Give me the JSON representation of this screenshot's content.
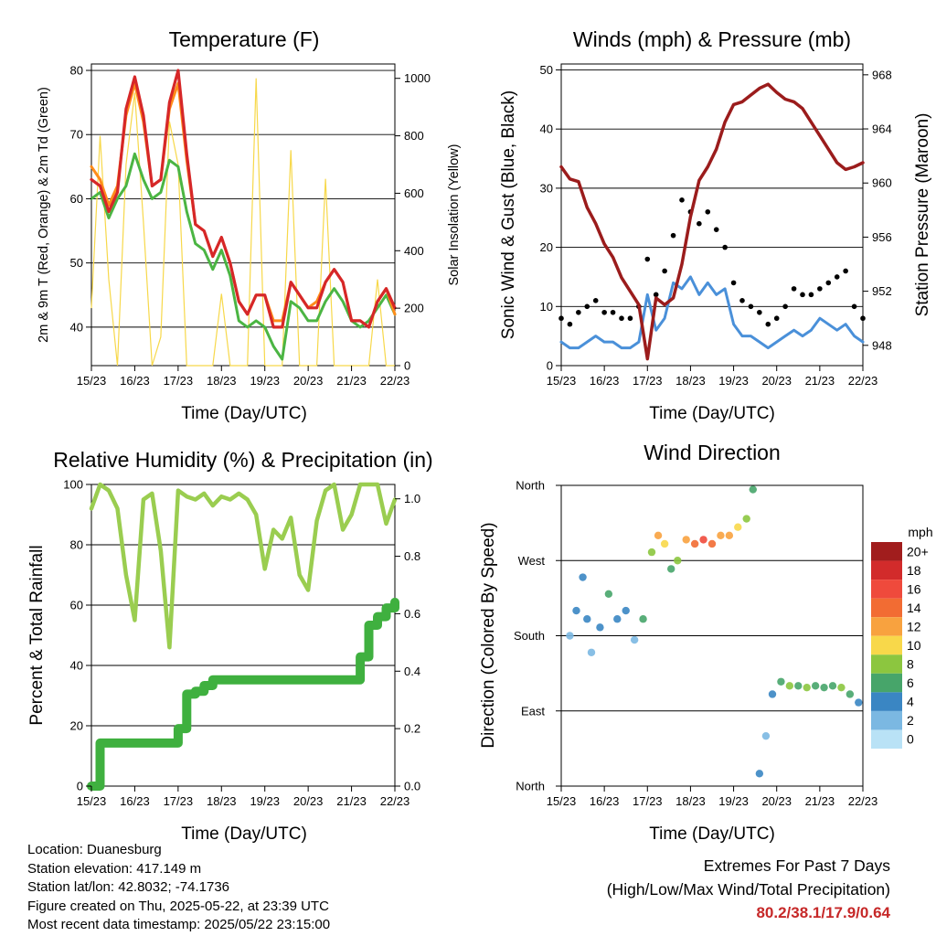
{
  "x_ticks": [
    "15/23",
    "16/23",
    "17/23",
    "18/23",
    "19/23",
    "20/23",
    "21/23",
    "22/23"
  ],
  "info": {
    "location": "Location: Duanesburg",
    "elevation": "Station elevation: 417.149 m",
    "latlon": "Station lat/lon: 42.8032; -74.1736",
    "created": "Figure created on Thu, 2025-05-22, at 23:39 UTC",
    "recent": "Most recent data timestamp: 2025/05/22 23:15:00"
  },
  "extremes": {
    "title": "Extremes For Past 7 Days",
    "subtitle": "(High/Low/Max Wind/Total Precipitation)",
    "values": "80.2/38.1/17.9/0.64"
  },
  "colors": {
    "temp_2m": "#d62728",
    "temp_9m": "#ff8c1a",
    "dewpoint": "#4bb543",
    "solar": "#f7d84a",
    "wind": "#4a90d9",
    "gust": "#000000",
    "pressure": "#9b1c1c",
    "rh": "#9acd50",
    "precip": "#3fb03f"
  },
  "chart_data": [
    {
      "type": "line",
      "title": "Temperature (F)",
      "xlabel": "Time (Day/UTC)",
      "ylabel": "2m & 9m T (Red, Orange) & 2m Td (Green)",
      "y2label": "Solar Insolation (Yellow)",
      "ylim": [
        34,
        81
      ],
      "y2lim": [
        0,
        1050
      ],
      "yticks": [
        40,
        50,
        60,
        70,
        80
      ],
      "y2ticks": [
        0,
        200,
        400,
        600,
        800,
        1000
      ],
      "x": [
        0,
        0.2,
        0.4,
        0.6,
        0.8,
        1.0,
        1.2,
        1.4,
        1.6,
        1.8,
        2.0,
        2.2,
        2.4,
        2.6,
        2.8,
        3.0,
        3.2,
        3.4,
        3.6,
        3.8,
        4.0,
        4.2,
        4.4,
        4.6,
        4.8,
        5.0,
        5.2,
        5.4,
        5.6,
        5.8,
        6.0,
        6.2,
        6.4,
        6.6,
        6.8,
        7.0
      ],
      "series": [
        {
          "name": "2m T",
          "values": [
            63,
            62,
            58,
            61,
            74,
            79,
            73,
            62,
            63,
            75,
            80,
            67,
            56,
            55,
            51,
            54,
            50,
            44,
            42,
            45,
            45,
            40,
            40,
            47,
            45,
            43,
            43,
            47,
            49,
            47,
            41,
            41,
            40,
            44,
            46,
            43
          ]
        },
        {
          "name": "9m T",
          "values": [
            65,
            63,
            59,
            62,
            73,
            78,
            72,
            62,
            63,
            74,
            78,
            66,
            56,
            55,
            51,
            54,
            50,
            44,
            42,
            45,
            45,
            41,
            41,
            47,
            45,
            43,
            44,
            47,
            49,
            47,
            41,
            41,
            40,
            44,
            46,
            42
          ]
        },
        {
          "name": "2m Td",
          "values": [
            60,
            61,
            57,
            60,
            62,
            67,
            63,
            60,
            61,
            66,
            65,
            58,
            53,
            52,
            49,
            52,
            48,
            41,
            40,
            41,
            40,
            37,
            35,
            44,
            43,
            41,
            41,
            44,
            46,
            44,
            41,
            40,
            41,
            43,
            45,
            42
          ]
        },
        {
          "name": "Solar",
          "values": [
            200,
            800,
            300,
            0,
            700,
            950,
            500,
            0,
            100,
            850,
            700,
            0,
            0,
            0,
            0,
            250,
            0,
            0,
            0,
            1000,
            0,
            0,
            0,
            750,
            0,
            0,
            0,
            650,
            0,
            0,
            0,
            0,
            0,
            300,
            0,
            0
          ]
        }
      ]
    },
    {
      "type": "line",
      "title": "Winds (mph) & Pressure (mb)",
      "xlabel": "Time (Day/UTC)",
      "ylabel": "Sonic Wind & Gust (Blue, Black)",
      "y2label": "Station Pressure (Maroon)",
      "ylim": [
        0,
        51
      ],
      "y2lim": [
        946.5,
        968.8
      ],
      "yticks": [
        0,
        10,
        20,
        30,
        40,
        50
      ],
      "y2ticks": [
        948,
        952,
        956,
        960,
        964,
        968
      ],
      "x": [
        0,
        0.2,
        0.4,
        0.6,
        0.8,
        1.0,
        1.2,
        1.4,
        1.6,
        1.8,
        2.0,
        2.2,
        2.4,
        2.6,
        2.8,
        3.0,
        3.2,
        3.4,
        3.6,
        3.8,
        4.0,
        4.2,
        4.4,
        4.6,
        4.8,
        5.0,
        5.2,
        5.4,
        5.6,
        5.8,
        6.0,
        6.2,
        6.4,
        6.6,
        6.8,
        7.0
      ],
      "series": [
        {
          "name": "Wind",
          "values": [
            4,
            3,
            3,
            4,
            5,
            4,
            4,
            3,
            3,
            4,
            12,
            6,
            8,
            14,
            13,
            15,
            12,
            14,
            12,
            13,
            7,
            5,
            5,
            4,
            3,
            4,
            5,
            6,
            5,
            6,
            8,
            7,
            6,
            7,
            5,
            4
          ]
        },
        {
          "name": "Gust",
          "values": [
            8,
            7,
            9,
            10,
            11,
            9,
            9,
            8,
            8,
            10,
            18,
            12,
            16,
            22,
            28,
            26,
            24,
            26,
            23,
            20,
            14,
            11,
            10,
            9,
            7,
            8,
            10,
            13,
            12,
            12,
            13,
            14,
            15,
            16,
            10,
            8
          ]
        },
        {
          "name": "Pressure",
          "values": [
            961.2,
            960.3,
            960.1,
            958.2,
            957.0,
            955.5,
            954.5,
            953.0,
            952.0,
            951.0,
            947.0,
            951.5,
            951.0,
            951.5,
            954.0,
            957.5,
            960.2,
            961.2,
            962.5,
            964.5,
            965.8,
            966.0,
            966.5,
            967.0,
            967.3,
            966.7,
            966.2,
            966.0,
            965.5,
            964.5,
            963.5,
            962.5,
            961.5,
            961.0,
            961.2,
            961.5
          ]
        }
      ]
    },
    {
      "type": "line",
      "title": "Relative Humidity (%) & Precipitation (in)",
      "xlabel": "Time (Day/UTC)",
      "ylabel": "Percent & Total Rainfall",
      "ylim": [
        0,
        100
      ],
      "y2lim": [
        0,
        1.05
      ],
      "yticks": [
        0,
        20,
        40,
        60,
        80,
        100
      ],
      "y2ticks": [
        0.0,
        0.2,
        0.4,
        0.6,
        0.8,
        1.0
      ],
      "x": [
        0,
        0.2,
        0.4,
        0.6,
        0.8,
        1.0,
        1.2,
        1.4,
        1.6,
        1.8,
        2.0,
        2.2,
        2.4,
        2.6,
        2.8,
        3.0,
        3.2,
        3.4,
        3.6,
        3.8,
        4.0,
        4.2,
        4.4,
        4.6,
        4.8,
        5.0,
        5.2,
        5.4,
        5.6,
        5.8,
        6.0,
        6.2,
        6.4,
        6.6,
        6.8,
        7.0
      ],
      "series": [
        {
          "name": "RH",
          "values": [
            92,
            100,
            98,
            92,
            70,
            55,
            95,
            97,
            78,
            46,
            98,
            96,
            95,
            97,
            93,
            96,
            95,
            97,
            95,
            90,
            72,
            85,
            82,
            89,
            70,
            65,
            88,
            98,
            100,
            85,
            90,
            100,
            100,
            100,
            87,
            95
          ]
        },
        {
          "name": "Precip",
          "values": [
            0.0,
            0.15,
            0.15,
            0.15,
            0.15,
            0.15,
            0.15,
            0.15,
            0.15,
            0.15,
            0.2,
            0.32,
            0.33,
            0.35,
            0.37,
            0.37,
            0.37,
            0.37,
            0.37,
            0.37,
            0.37,
            0.37,
            0.37,
            0.37,
            0.37,
            0.37,
            0.37,
            0.37,
            0.37,
            0.37,
            0.37,
            0.45,
            0.56,
            0.59,
            0.62,
            0.64
          ]
        }
      ]
    },
    {
      "type": "scatter",
      "title": "Wind Direction",
      "xlabel": "Time (Day/UTC)",
      "ylabel": "Direction (Colored By Speed)",
      "yticks": [
        "North",
        "East",
        "South",
        "West",
        "North"
      ],
      "colorbar_title": "mph",
      "colorbar_labels": [
        "20+",
        "18",
        "16",
        "14",
        "12",
        "10",
        "8",
        "6",
        "4",
        "2",
        "0"
      ],
      "colorbar_colors": [
        "#a11d1d",
        "#d22b2b",
        "#ef4a3c",
        "#f26c33",
        "#f8a23f",
        "#f8d84a",
        "#8cc63f",
        "#47a56a",
        "#3a86c3",
        "#7bb8e2",
        "#b9e2f6"
      ],
      "points": [
        {
          "x": 0.2,
          "dir": 180,
          "speed": 2
        },
        {
          "x": 0.35,
          "dir": 210,
          "speed": 3
        },
        {
          "x": 0.5,
          "dir": 250,
          "speed": 4
        },
        {
          "x": 0.6,
          "dir": 200,
          "speed": 3
        },
        {
          "x": 0.7,
          "dir": 160,
          "speed": 2
        },
        {
          "x": 0.9,
          "dir": 190,
          "speed": 4
        },
        {
          "x": 1.1,
          "dir": 230,
          "speed": 5
        },
        {
          "x": 1.3,
          "dir": 200,
          "speed": 4
        },
        {
          "x": 1.5,
          "dir": 210,
          "speed": 3
        },
        {
          "x": 1.7,
          "dir": 175,
          "speed": 2
        },
        {
          "x": 1.9,
          "dir": 200,
          "speed": 5
        },
        {
          "x": 2.1,
          "dir": 280,
          "speed": 8
        },
        {
          "x": 2.25,
          "dir": 300,
          "speed": 12
        },
        {
          "x": 2.4,
          "dir": 290,
          "speed": 10
        },
        {
          "x": 2.55,
          "dir": 260,
          "speed": 6
        },
        {
          "x": 2.7,
          "dir": 270,
          "speed": 7
        },
        {
          "x": 2.9,
          "dir": 295,
          "speed": 11
        },
        {
          "x": 3.1,
          "dir": 290,
          "speed": 14
        },
        {
          "x": 3.3,
          "dir": 295,
          "speed": 15
        },
        {
          "x": 3.5,
          "dir": 290,
          "speed": 13
        },
        {
          "x": 3.7,
          "dir": 300,
          "speed": 12
        },
        {
          "x": 3.9,
          "dir": 300,
          "speed": 11
        },
        {
          "x": 4.1,
          "dir": 310,
          "speed": 10
        },
        {
          "x": 4.3,
          "dir": 320,
          "speed": 7
        },
        {
          "x": 4.45,
          "dir": 355,
          "speed": 5
        },
        {
          "x": 4.6,
          "dir": 15,
          "speed": 3
        },
        {
          "x": 4.75,
          "dir": 60,
          "speed": 2
        },
        {
          "x": 4.9,
          "dir": 110,
          "speed": 4
        },
        {
          "x": 5.1,
          "dir": 125,
          "speed": 6
        },
        {
          "x": 5.3,
          "dir": 120,
          "speed": 7
        },
        {
          "x": 5.5,
          "dir": 120,
          "speed": 6
        },
        {
          "x": 5.7,
          "dir": 118,
          "speed": 7
        },
        {
          "x": 5.9,
          "dir": 120,
          "speed": 6
        },
        {
          "x": 6.1,
          "dir": 118,
          "speed": 5
        },
        {
          "x": 6.3,
          "dir": 120,
          "speed": 6
        },
        {
          "x": 6.5,
          "dir": 118,
          "speed": 7
        },
        {
          "x": 6.7,
          "dir": 110,
          "speed": 5
        },
        {
          "x": 6.9,
          "dir": 100,
          "speed": 4
        }
      ]
    }
  ]
}
